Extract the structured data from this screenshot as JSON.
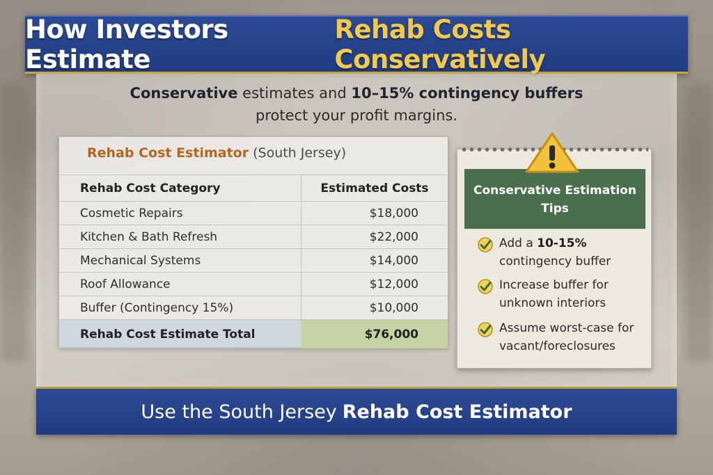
{
  "title": {
    "part1": "How Investors Estimate",
    "part2": "Rehab Costs Conservatively"
  },
  "subtitle": {
    "bold1": "Conservative",
    "text1": " estimates and ",
    "bold2": "10–15% contingency buffers",
    "line2": "protect your profit margins."
  },
  "estimator": {
    "title_main": "Rehab Cost Estimator",
    "title_region": "(South Jersey)",
    "headers": [
      "Rehab Cost Category",
      "Estimated Costs"
    ],
    "rows": [
      {
        "category": "Cosmetic Repairs",
        "cost": "$18,000"
      },
      {
        "category": "Kitchen & Bath Refresh",
        "cost": "$22,000"
      },
      {
        "category": "Mechanical Systems",
        "cost": "$14,000"
      },
      {
        "category": "Roof Allowance",
        "cost": "$12,000"
      },
      {
        "category": "Buffer (Contingency 15%)",
        "cost": "$10,000"
      }
    ],
    "total_label": "Rehab Cost Estimate Total",
    "total_value": "$76,000"
  },
  "tips": {
    "heading": "Conservative Estimation Tips",
    "icon": "warning-icon",
    "items": [
      {
        "pre": "Add a ",
        "bold": "10-15%",
        "post": " contingency buffer"
      },
      {
        "pre": "Increase buffer for unknown interiors",
        "bold": "",
        "post": ""
      },
      {
        "pre": "Assume worst-case for vacant/foreclosures",
        "bold": "",
        "post": ""
      }
    ]
  },
  "footer": {
    "text": "Use the South Jersey",
    "bold": "Rehab Cost Estimator"
  },
  "colors": {
    "banner_blue": "#203c82",
    "gold": "#f2c94c",
    "tips_green": "#4a6f4c",
    "orange": "#b4661e"
  }
}
